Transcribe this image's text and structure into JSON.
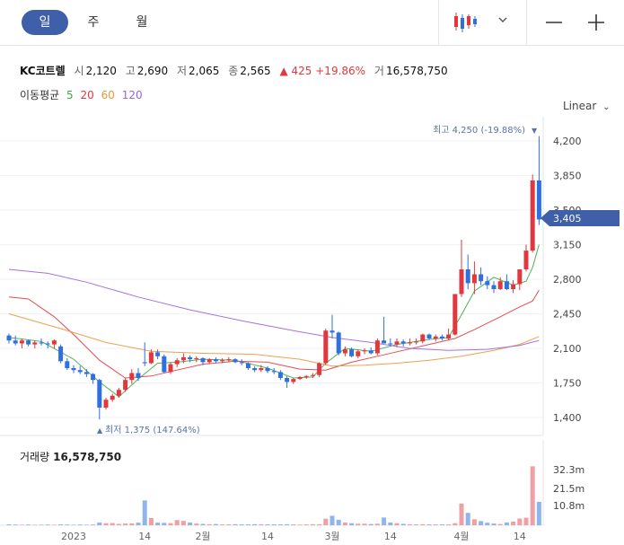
{
  "toolbar": {
    "periods": [
      {
        "label": "일",
        "active": true
      },
      {
        "label": "주",
        "active": false
      },
      {
        "label": "월",
        "active": false
      }
    ],
    "chart_type_icon": "candlestick-icon",
    "dropdown_icon": "chevron-down-icon",
    "zoom_out_icon": "minus-icon",
    "zoom_in_icon": "plus-icon"
  },
  "info": {
    "name": "KC코트렐",
    "open_label": "시",
    "open": "2,120",
    "high_label": "고",
    "high": "2,690",
    "low_label": "저",
    "low": "2,065",
    "close_label": "종",
    "close": "2,565",
    "change": "425",
    "change_pct": "+19.86%",
    "volume_label": "거",
    "volume": "16,578,750"
  },
  "moving_average": {
    "label": "이동평균",
    "periods": [
      {
        "value": "5",
        "color": "#3aa845"
      },
      {
        "value": "20",
        "color": "#e0383e"
      },
      {
        "value": "60",
        "color": "#f0953a"
      },
      {
        "value": "120",
        "color": "#9a62e0"
      }
    ]
  },
  "scale_label": "Linear",
  "high_marker": "최고 4,250 (-19.88%)",
  "low_marker": "최저 1,375 (147.64%)",
  "current_price": "3,405",
  "volume_panel": {
    "title": "거래량",
    "value": "16,578,750",
    "axis_labels": [
      "32.3m",
      "21.5m",
      "10.8m"
    ]
  },
  "colors": {
    "up": "#e0383e",
    "down": "#2f6fe0",
    "accent": "#3f5fa8",
    "vol_up": "#f0a0a4",
    "vol_down": "#8fb5ec"
  },
  "chart_data": {
    "type": "candlestick",
    "price_axis_ticks": [
      4200,
      3850,
      3500,
      3150,
      2800,
      2450,
      2100,
      1750,
      1400
    ],
    "price_axis_labels": [
      "4,200",
      "3,850",
      "3,500",
      "3,150",
      "2,800",
      "2,450",
      "2,100",
      "1,750",
      "1,400"
    ],
    "ylim": [
      1400,
      4250
    ],
    "x_labels": [
      {
        "label": "2023",
        "index": 10
      },
      {
        "label": "14",
        "index": 21
      },
      {
        "label": "2월",
        "index": 30
      },
      {
        "label": "14",
        "index": 40
      },
      {
        "label": "3월",
        "index": 50
      },
      {
        "label": "14",
        "index": 59
      },
      {
        "label": "4월",
        "index": 70
      },
      {
        "label": "14",
        "index": 79
      }
    ],
    "candles": [
      [
        2230,
        2250,
        2150,
        2180
      ],
      [
        2180,
        2230,
        2130,
        2150
      ],
      [
        2150,
        2200,
        2100,
        2180
      ],
      [
        2180,
        2190,
        2120,
        2140
      ],
      [
        2140,
        2180,
        2100,
        2160
      ],
      [
        2160,
        2200,
        2130,
        2150
      ],
      [
        2150,
        2170,
        2100,
        2140
      ],
      [
        2140,
        2190,
        2100,
        2180
      ],
      [
        2120,
        2140,
        1950,
        1970
      ],
      [
        1970,
        2000,
        1880,
        1900
      ],
      [
        1900,
        1930,
        1850,
        1880
      ],
      [
        1880,
        1920,
        1840,
        1860
      ],
      [
        1860,
        1890,
        1810,
        1840
      ],
      [
        1840,
        1850,
        1740,
        1780
      ],
      [
        1780,
        1790,
        1380,
        1500
      ],
      [
        1500,
        1600,
        1480,
        1580
      ],
      [
        1580,
        1640,
        1560,
        1620
      ],
      [
        1620,
        1700,
        1600,
        1680
      ],
      [
        1680,
        1800,
        1660,
        1780
      ],
      [
        1780,
        1890,
        1740,
        1850
      ],
      [
        1850,
        1900,
        1770,
        1800
      ],
      [
        1960,
        2160,
        1920,
        1950
      ],
      [
        1950,
        2090,
        1940,
        2060
      ],
      [
        2060,
        2090,
        1990,
        2020
      ],
      [
        2020,
        2040,
        1850,
        1860
      ],
      [
        1860,
        1960,
        1840,
        1940
      ],
      [
        1940,
        2000,
        1910,
        1980
      ],
      [
        1980,
        2050,
        1950,
        2010
      ],
      [
        2010,
        2030,
        1960,
        1990
      ],
      [
        1990,
        2020,
        1960,
        2000
      ],
      [
        2000,
        2010,
        1930,
        1960
      ],
      [
        1960,
        2000,
        1940,
        1990
      ],
      [
        1990,
        2010,
        1950,
        1970
      ],
      [
        1970,
        2000,
        1950,
        1980
      ],
      [
        1980,
        2010,
        1960,
        1990
      ],
      [
        1990,
        2000,
        1950,
        1960
      ],
      [
        1960,
        1990,
        1930,
        1950
      ],
      [
        1950,
        1960,
        1880,
        1900
      ],
      [
        1900,
        1920,
        1860,
        1880
      ],
      [
        1880,
        1930,
        1860,
        1900
      ],
      [
        1900,
        1920,
        1850,
        1870
      ],
      [
        1870,
        1900,
        1840,
        1860
      ],
      [
        1860,
        1880,
        1780,
        1800
      ],
      [
        1800,
        1820,
        1700,
        1760
      ],
      [
        1760,
        1800,
        1740,
        1790
      ],
      [
        1790,
        1820,
        1780,
        1810
      ],
      [
        1810,
        1830,
        1790,
        1820
      ],
      [
        1820,
        1850,
        1800,
        1830
      ],
      [
        1830,
        1960,
        1810,
        1950
      ],
      [
        1950,
        2300,
        1930,
        2280
      ],
      [
        2280,
        2440,
        2200,
        2260
      ],
      [
        2260,
        2270,
        2030,
        2050
      ],
      [
        2050,
        2120,
        2020,
        2090
      ],
      [
        2090,
        2110,
        2010,
        2020
      ],
      [
        2020,
        2090,
        2000,
        2070
      ],
      [
        2070,
        2100,
        2040,
        2080
      ],
      [
        2080,
        2110,
        2040,
        2050
      ],
      [
        2050,
        2200,
        2030,
        2180
      ],
      [
        2180,
        2420,
        2150,
        2150
      ],
      [
        2150,
        2200,
        2120,
        2140
      ],
      [
        2140,
        2200,
        2110,
        2170
      ],
      [
        2170,
        2190,
        2120,
        2150
      ],
      [
        2150,
        2200,
        2130,
        2160
      ],
      [
        2160,
        2200,
        2140,
        2170
      ],
      [
        2170,
        2250,
        2150,
        2240
      ],
      [
        2240,
        2250,
        2190,
        2200
      ],
      [
        2200,
        2240,
        2170,
        2220
      ],
      [
        2220,
        2240,
        2180,
        2200
      ],
      [
        2200,
        2300,
        2180,
        2240
      ],
      [
        2240,
        2650,
        2230,
        2650
      ],
      [
        2650,
        3200,
        2620,
        2900
      ],
      [
        2900,
        3050,
        2700,
        2760
      ],
      [
        2760,
        2980,
        2650,
        2850
      ],
      [
        2850,
        2920,
        2740,
        2780
      ],
      [
        2780,
        2830,
        2700,
        2740
      ],
      [
        2740,
        2780,
        2660,
        2700
      ],
      [
        2700,
        2820,
        2690,
        2780
      ],
      [
        2780,
        2850,
        2690,
        2700
      ],
      [
        2700,
        2790,
        2660,
        2750
      ],
      [
        2750,
        2900,
        2690,
        2900
      ],
      [
        2900,
        3150,
        2880,
        3090
      ],
      [
        3090,
        3860,
        3070,
        3800
      ],
      [
        3800,
        4250,
        3350,
        3405
      ]
    ],
    "volumes_m": [
      0.5,
      0.4,
      0.3,
      0.4,
      0.3,
      0.3,
      0.4,
      0.3,
      0.5,
      0.4,
      0.3,
      0.4,
      0.3,
      0.4,
      1.6,
      1.2,
      1.3,
      0.8,
      1.0,
      1.1,
      1.5,
      14.4,
      4.2,
      1.5,
      1.4,
      1.2,
      3.0,
      2.5,
      1.6,
      1.0,
      0.8,
      0.6,
      0.7,
      0.5,
      0.5,
      0.6,
      0.5,
      0.5,
      0.6,
      0.6,
      0.5,
      0.5,
      0.5,
      0.6,
      0.5,
      0.4,
      0.5,
      0.6,
      0.6,
      3.8,
      5.5,
      3.2,
      1.6,
      1.2,
      0.9,
      0.9,
      0.7,
      0.9,
      4.5,
      1.6,
      1.2,
      0.8,
      0.6,
      0.5,
      0.6,
      0.5,
      0.5,
      0.5,
      0.5,
      1.2,
      12.6,
      7.2,
      3.5,
      2.4,
      1.5,
      1.0,
      0.7,
      1.6,
      2.1,
      3.9,
      4.4,
      34.2,
      13.6
    ],
    "ma_series": [
      {
        "name": "5",
        "color": "#3aa845",
        "values": [
          [
            0,
            2210
          ],
          [
            5,
            2170
          ],
          [
            10,
            1990
          ],
          [
            14,
            1760
          ],
          [
            17,
            1610
          ],
          [
            20,
            1790
          ],
          [
            23,
            1950
          ],
          [
            26,
            1960
          ],
          [
            30,
            1990
          ],
          [
            35,
            1980
          ],
          [
            40,
            1900
          ],
          [
            44,
            1800
          ],
          [
            47,
            1810
          ],
          [
            49,
            1950
          ],
          [
            52,
            2100
          ],
          [
            56,
            2070
          ],
          [
            60,
            2140
          ],
          [
            65,
            2190
          ],
          [
            68,
            2210
          ],
          [
            70,
            2440
          ],
          [
            72,
            2680
          ],
          [
            75,
            2820
          ],
          [
            78,
            2740
          ],
          [
            80,
            2780
          ],
          [
            81,
            2920
          ],
          [
            82,
            3150
          ]
        ]
      },
      {
        "name": "20",
        "color": "#e0383e",
        "values": [
          [
            0,
            2620
          ],
          [
            3,
            2600
          ],
          [
            7,
            2420
          ],
          [
            10,
            2240
          ],
          [
            14,
            1980
          ],
          [
            18,
            1800
          ],
          [
            22,
            1820
          ],
          [
            26,
            1880
          ],
          [
            30,
            1940
          ],
          [
            35,
            1970
          ],
          [
            40,
            1960
          ],
          [
            45,
            1890
          ],
          [
            49,
            1880
          ],
          [
            53,
            1960
          ],
          [
            57,
            2020
          ],
          [
            61,
            2080
          ],
          [
            65,
            2140
          ],
          [
            69,
            2200
          ],
          [
            72,
            2290
          ],
          [
            76,
            2420
          ],
          [
            79,
            2520
          ],
          [
            81,
            2580
          ],
          [
            82,
            2690
          ]
        ]
      },
      {
        "name": "60",
        "color": "#f0953a",
        "values": [
          [
            0,
            2450
          ],
          [
            8,
            2300
          ],
          [
            15,
            2160
          ],
          [
            22,
            2070
          ],
          [
            30,
            2050
          ],
          [
            38,
            2040
          ],
          [
            45,
            1990
          ],
          [
            50,
            1920
          ],
          [
            55,
            1930
          ],
          [
            60,
            1950
          ],
          [
            65,
            1980
          ],
          [
            70,
            2020
          ],
          [
            75,
            2080
          ],
          [
            79,
            2140
          ],
          [
            82,
            2220
          ]
        ]
      },
      {
        "name": "120",
        "color": "#9a62e0",
        "values": [
          [
            0,
            2900
          ],
          [
            6,
            2860
          ],
          [
            12,
            2770
          ],
          [
            20,
            2620
          ],
          [
            28,
            2490
          ],
          [
            36,
            2380
          ],
          [
            44,
            2280
          ],
          [
            50,
            2210
          ],
          [
            56,
            2160
          ],
          [
            62,
            2100
          ],
          [
            68,
            2080
          ],
          [
            74,
            2090
          ],
          [
            79,
            2130
          ],
          [
            82,
            2180
          ]
        ]
      }
    ]
  }
}
